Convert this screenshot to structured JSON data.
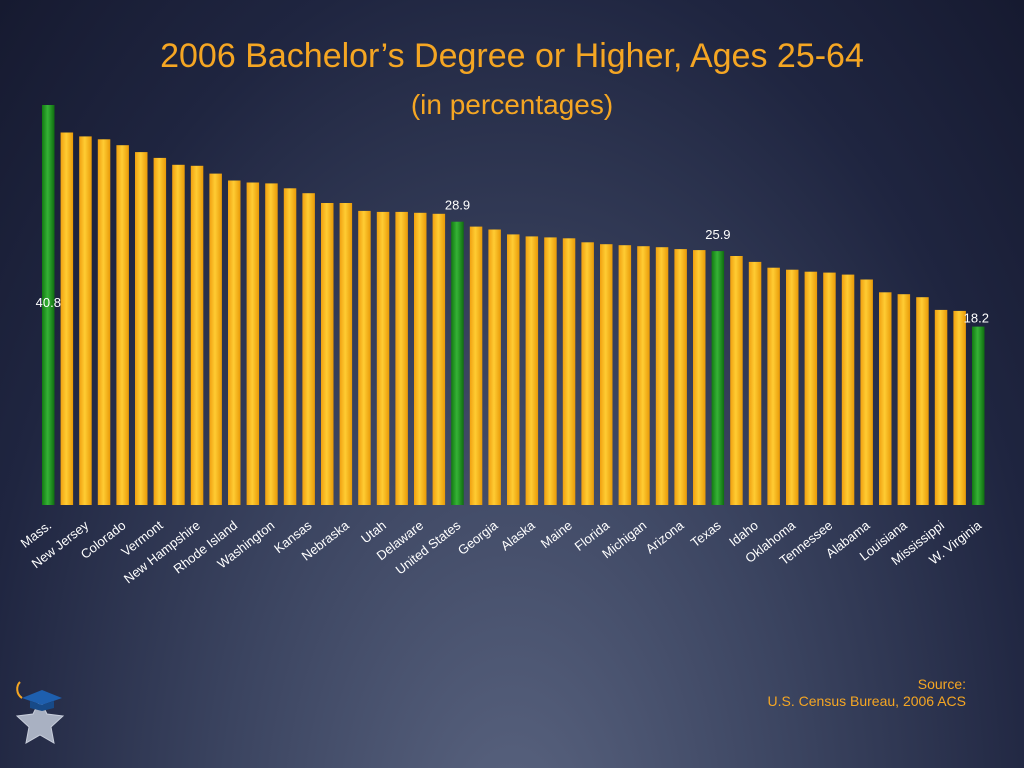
{
  "chart_data": {
    "type": "bar",
    "title": "2006 Bachelor’s Degree or Higher, Ages 25-64",
    "subtitle": "(in percentages)",
    "categories": [
      "Mass.",
      "",
      "New Jersey",
      "",
      "Colorado",
      "",
      "Vermont",
      "",
      "New Hampshire",
      "",
      "Rhode Island",
      "",
      "Washington",
      "",
      "Kansas",
      "",
      "Nebraska",
      "",
      "Utah",
      "",
      "Delaware",
      "",
      "United States",
      "",
      "Georgia",
      "",
      "Alaska",
      "",
      "Maine",
      "",
      "Florida",
      "",
      "Michigan",
      "",
      "Arizona",
      "",
      "Texas",
      "",
      "Idaho",
      "",
      "Oklahoma",
      "",
      "Tennessee",
      "",
      "Alabama",
      "",
      "Louisiana",
      "",
      "Mississippi",
      "",
      "W. Virginia"
    ],
    "values": [
      40.8,
      38.0,
      37.6,
      37.3,
      36.7,
      36.0,
      35.4,
      34.7,
      34.6,
      33.8,
      33.1,
      32.9,
      32.8,
      32.3,
      31.8,
      30.8,
      30.8,
      30.0,
      29.9,
      29.9,
      29.8,
      29.7,
      28.9,
      28.4,
      28.1,
      27.6,
      27.4,
      27.3,
      27.2,
      26.8,
      26.6,
      26.5,
      26.4,
      26.3,
      26.1,
      26.0,
      25.9,
      25.4,
      24.8,
      24.2,
      24.0,
      23.8,
      23.7,
      23.5,
      23.0,
      21.7,
      21.5,
      21.2,
      19.9,
      19.8,
      18.2
    ],
    "highlighted": [
      "Mass.",
      "United States",
      "Texas",
      "W. Virginia"
    ],
    "data_labels": [
      {
        "category": "Mass.",
        "text": "40.8"
      },
      {
        "category": "United States",
        "text": "28.9"
      },
      {
        "category": "Texas",
        "text": "25.9"
      },
      {
        "category": "W. Virginia",
        "text": "18.2"
      }
    ],
    "ylim": [
      0,
      40.8
    ],
    "grid": false,
    "colors": {
      "bar": "#f5a70f",
      "highlight": "#1e8a1e",
      "label": "#ffffff",
      "text": "#f5a623"
    }
  },
  "source": {
    "line1": "Source:",
    "line2": "U.S. Census Bureau, 2006 ACS"
  },
  "logo_icon": "graduation-cap-star-icon"
}
